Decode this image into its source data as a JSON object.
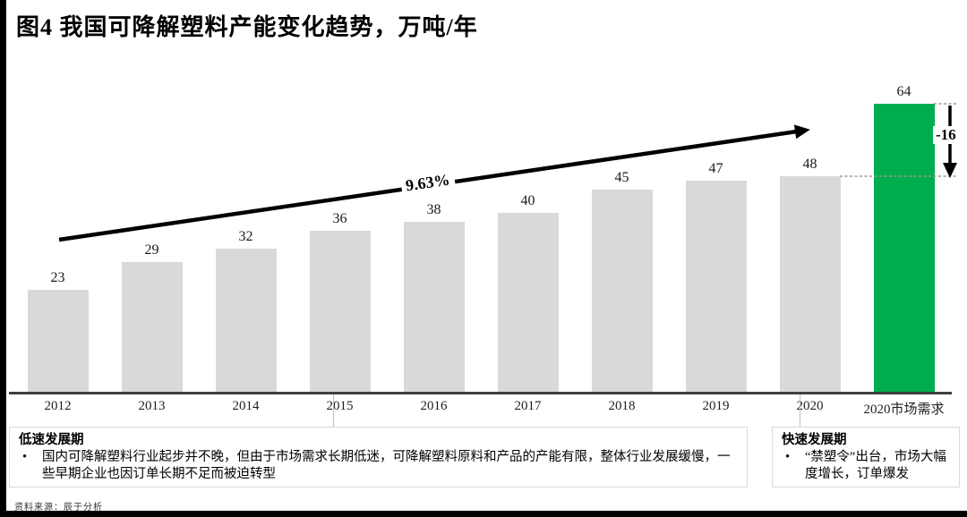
{
  "title": "图4 我国可降解塑料产能变化趋势，万吨/年",
  "bullet_char": "•",
  "chart_data": {
    "type": "bar",
    "categories": [
      "2012",
      "2013",
      "2014",
      "2015",
      "2016",
      "2017",
      "2018",
      "2019",
      "2020",
      "2020市场需求"
    ],
    "values": [
      23,
      29,
      32,
      36,
      38,
      40,
      45,
      47,
      48,
      64
    ],
    "title": "图4 我国可降解塑料产能变化趋势，万吨/年",
    "unit": "万吨/年",
    "ylim": [
      0,
      64
    ],
    "grid": false,
    "legend": false,
    "highlight_index": 9,
    "bar_colors": {
      "default": "#d9d9d9",
      "highlight": "#00ad4e"
    },
    "annotations": {
      "trend_growth_label": "9.63%",
      "gap_label": "-16",
      "gap_from_value": 64,
      "gap_to_value": 48
    }
  },
  "phases": {
    "slow": {
      "title": "低速发展期",
      "bullet": "国内可降解塑料行业起步并不晚，但由于市场需求长期低迷，可降解塑料原料和产品的产能有限，整体行业发展缓慢，一些早期企业也因订单长期不足而被迫转型"
    },
    "fast": {
      "title": "快速发展期",
      "bullet": "“禁塑令”出台，市场大幅度增长，订单爆发"
    }
  },
  "source": "资料来源：辰于分析",
  "colors": {
    "bar": "#d9d9d9",
    "highlight": "#00ad4e",
    "axis": "#3f3f3f",
    "dashed": "#999999",
    "arrow": "#000000"
  }
}
